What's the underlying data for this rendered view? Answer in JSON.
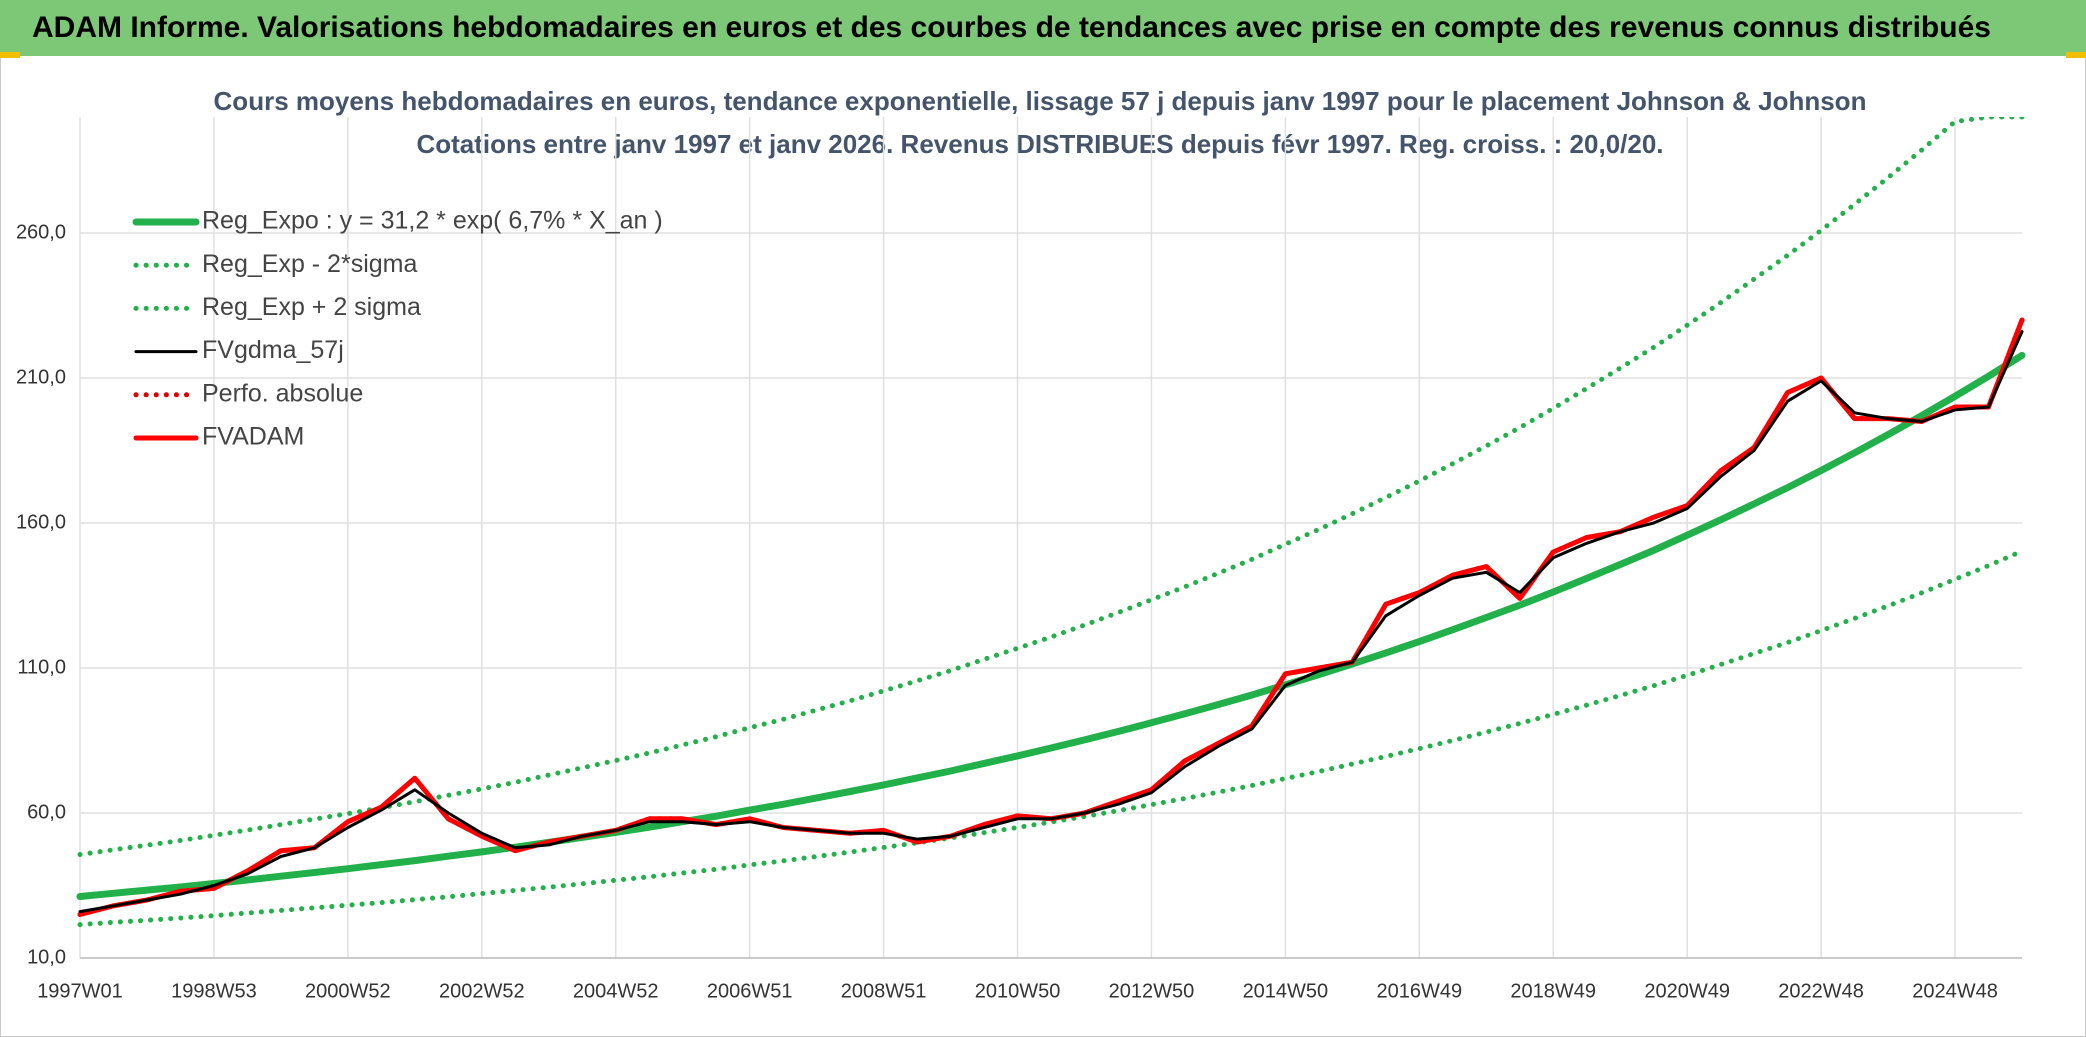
{
  "header": "ADAM Informe. Valorisations hebdomadaires en euros et des courbes de tendances avec prise en compte des revenus connus distribués",
  "chart_data": {
    "type": "line",
    "title": "Cours moyens hebdomadaires en euros, tendance exponentielle, lissage 57 j depuis janv 1997 pour le placement Johnson & Johnson",
    "subtitle": "Cotations entre janv 1997 et janv 2026. Revenus DISTRIBUES depuis févr 1997. Reg. croiss. : 20,0/20.",
    "categories": [
      "1997W01",
      null,
      null,
      null,
      "1998W53",
      null,
      null,
      null,
      "2000W52",
      null,
      null,
      null,
      "2002W52",
      null,
      null,
      null,
      "2004W52",
      null,
      null,
      null,
      "2006W51",
      null,
      null,
      null,
      "2008W51",
      null,
      null,
      null,
      "2010W50",
      null,
      null,
      null,
      "2012W50",
      null,
      null,
      null,
      "2014W50",
      null,
      null,
      null,
      "2016W49",
      null,
      null,
      null,
      "2018W49",
      null,
      null,
      null,
      "2020W49",
      null,
      null,
      null,
      "2022W48",
      null,
      null,
      null,
      "2024W48",
      null,
      null
    ],
    "ylim": [
      10,
      300
    ],
    "yticks": [
      {
        "value": 10,
        "label": "10,0"
      },
      {
        "value": 60,
        "label": "60,0"
      },
      {
        "value": 110,
        "label": "110,0"
      },
      {
        "value": 160,
        "label": "160,0"
      },
      {
        "value": 210,
        "label": "210,0"
      },
      {
        "value": 260,
        "label": "260,0"
      }
    ],
    "grid": true,
    "legend": "upper left",
    "series": [
      {
        "name": "Reg_Expo : y = 31,2 * exp( 6,7% *  X_an )",
        "color": "#22b04a",
        "line_style": "solid",
        "values": [
          31.2,
          32.3,
          33.4,
          34.5,
          35.7,
          36.9,
          38.2,
          39.5,
          40.8,
          42.2,
          43.6,
          45.1,
          46.6,
          48.2,
          49.9,
          51.6,
          53.3,
          55.1,
          57.0,
          58.9,
          61.0,
          63.0,
          65.2,
          67.4,
          69.7,
          72.1,
          74.5,
          77.1,
          79.7,
          82.4,
          85.2,
          88.1,
          91.1,
          94.2,
          97.4,
          100.7,
          104.2,
          107.7,
          111.4,
          115.2,
          119.1,
          123.2,
          127.4,
          131.7,
          136.2,
          140.9,
          145.7,
          150.6,
          155.8,
          161.1,
          166.6,
          172.2,
          178.1,
          184.2,
          190.5,
          197.0,
          203.7,
          210.6,
          217.8
        ]
      },
      {
        "name": "Reg_Exp - 2*sigma",
        "color": "#22b04a",
        "line_style": "dotted",
        "values": [
          21.5,
          22.3,
          23.0,
          23.8,
          24.6,
          25.5,
          26.4,
          27.3,
          28.2,
          29.1,
          30.1,
          31.1,
          32.2,
          33.3,
          34.4,
          35.6,
          36.8,
          38.0,
          39.3,
          40.6,
          42.1,
          43.5,
          45.0,
          46.5,
          48.1,
          49.7,
          51.4,
          53.2,
          55.0,
          56.9,
          58.8,
          60.8,
          62.9,
          65.0,
          67.2,
          69.5,
          71.9,
          74.3,
          76.9,
          79.5,
          82.2,
          85.0,
          87.9,
          90.9,
          94.0,
          97.2,
          100.5,
          103.9,
          107.5,
          111.2,
          115.0,
          118.8,
          122.9,
          127.1,
          131.4,
          135.9,
          140.6,
          145.3,
          150.3
        ]
      },
      {
        "name": "Reg_Exp + 2 sigma",
        "color": "#22b04a",
        "line_style": "dotted",
        "values": [
          45.7,
          47.3,
          48.9,
          50.5,
          52.3,
          54.1,
          56.0,
          57.9,
          59.8,
          61.8,
          63.9,
          66.1,
          68.3,
          70.6,
          73.1,
          75.6,
          78.1,
          80.7,
          83.5,
          86.3,
          89.4,
          92.3,
          95.5,
          98.7,
          102.1,
          105.6,
          109.1,
          113.0,
          116.8,
          120.7,
          124.8,
          129.1,
          133.5,
          138.0,
          142.7,
          147.5,
          152.7,
          157.8,
          163.2,
          168.8,
          174.5,
          180.5,
          186.6,
          192.9,
          199.5,
          206.4,
          213.4,
          220.6,
          228.2,
          236.0,
          244.1,
          252.3,
          260.9,
          269.9,
          279.1,
          288.6,
          298.4,
          300,
          300
        ]
      },
      {
        "name": "FVgdma_57j",
        "color": "#000000",
        "line_style": "solid",
        "values": [
          26,
          28,
          30,
          32,
          35,
          39,
          45,
          48,
          55,
          61,
          68,
          60,
          53,
          48,
          49,
          52,
          54,
          57,
          57,
          56,
          57,
          55,
          54,
          53,
          53,
          51,
          52,
          55,
          58,
          58,
          60,
          63,
          67,
          76,
          83,
          89,
          104,
          109,
          112,
          128,
          135,
          141,
          143,
          136,
          148,
          153,
          157,
          160,
          165,
          176,
          185,
          202,
          209,
          198,
          196,
          195,
          199,
          200,
          226
        ]
      },
      {
        "name": "Perfo. absolue",
        "color": "#e00000",
        "line_style": "dotted",
        "values": [
          25,
          28,
          30,
          33,
          34,
          40,
          47,
          48,
          57,
          62,
          72,
          58,
          52,
          47,
          50,
          52,
          54,
          58,
          58,
          56,
          58,
          55,
          54,
          53,
          54,
          50,
          52,
          56,
          59,
          58,
          60,
          64,
          68,
          78,
          84,
          90,
          108,
          110,
          112,
          132,
          136,
          142,
          145,
          134,
          150,
          155,
          157,
          162,
          166,
          178,
          186,
          205,
          210,
          196,
          196,
          195,
          200,
          200,
          230
        ]
      },
      {
        "name": "FVADAM",
        "color": "#ff0000",
        "line_style": "solid",
        "values": [
          25,
          28,
          30,
          33,
          34,
          40,
          47,
          48,
          57,
          62,
          72,
          58,
          52,
          47,
          50,
          52,
          54,
          58,
          58,
          56,
          58,
          55,
          54,
          53,
          54,
          50,
          52,
          56,
          59,
          58,
          60,
          64,
          68,
          78,
          84,
          90,
          108,
          110,
          112,
          132,
          136,
          142,
          145,
          134,
          150,
          155,
          157,
          162,
          166,
          178,
          186,
          205,
          210,
          196,
          196,
          195,
          200,
          200,
          230
        ]
      }
    ]
  }
}
